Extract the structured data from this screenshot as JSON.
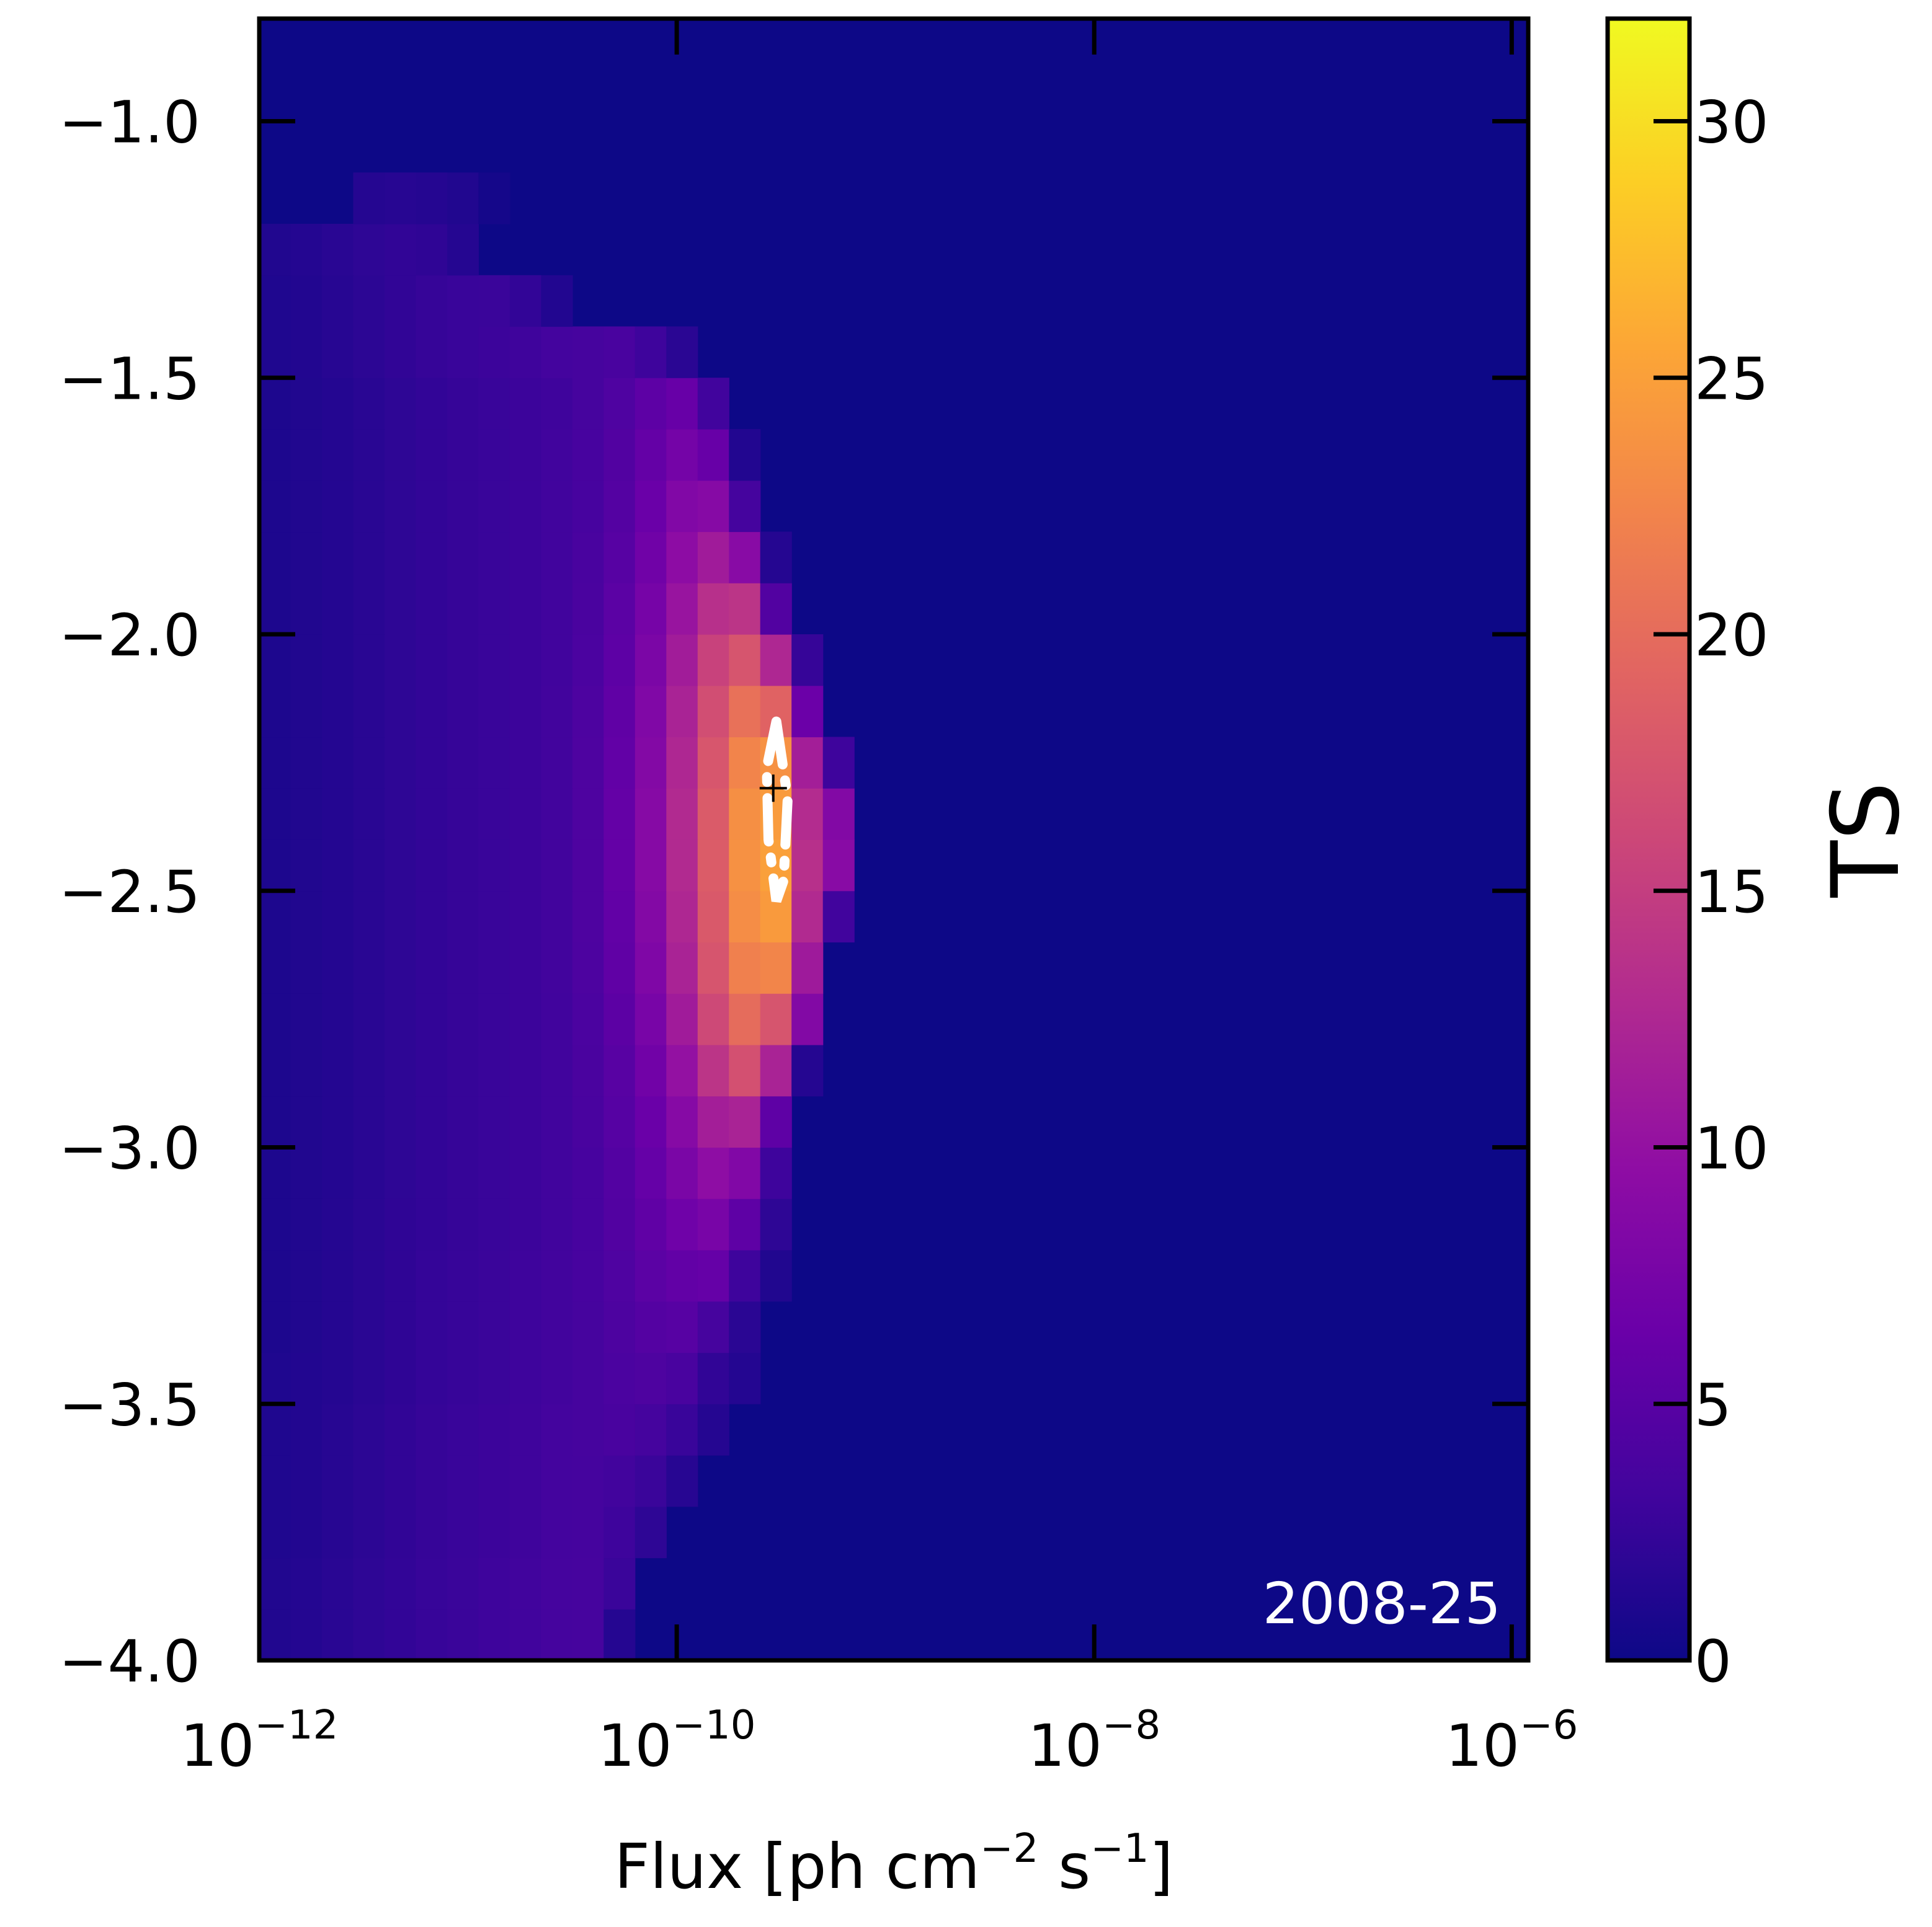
{
  "chart_data": {
    "type": "heatmap",
    "title": "",
    "xlabel": "Flux [ph cm$^{-2}$ s$^{-1}$]",
    "xlabel_parts": {
      "main": "Flux [ph cm",
      "exp1": "−2",
      "mid": " s",
      "exp2": "−1",
      "end": "]"
    },
    "ylabel": "",
    "x_scale": "log",
    "x_range": [
      1e-12,
      1.2e-06
    ],
    "y_range": [
      -4.0,
      -0.8
    ],
    "x_ticks": [
      {
        "value": 1e-12,
        "base": "10",
        "exp": "−12"
      },
      {
        "value": 1e-10,
        "base": "10",
        "exp": "−10"
      },
      {
        "value": 1e-08,
        "base": "10",
        "exp": "−8"
      },
      {
        "value": 1e-06,
        "base": "10",
        "exp": "−6"
      }
    ],
    "y_ticks": [
      {
        "value": -1.0,
        "label": "−1.0"
      },
      {
        "value": -1.5,
        "label": "−1.5"
      },
      {
        "value": -2.0,
        "label": "−2.0"
      },
      {
        "value": -2.5,
        "label": "−2.5"
      },
      {
        "value": -3.0,
        "label": "−3.0"
      },
      {
        "value": -3.5,
        "label": "−3.5"
      },
      {
        "value": -4.0,
        "label": "−4.0"
      }
    ],
    "grid": false,
    "colormap": "plasma",
    "colorbar": {
      "label": "TS",
      "range": [
        0,
        32
      ],
      "ticks": [
        {
          "value": 0,
          "label": "0"
        },
        {
          "value": 5,
          "label": "5"
        },
        {
          "value": 10,
          "label": "10"
        },
        {
          "value": 15,
          "label": "15"
        },
        {
          "value": 20,
          "label": "20"
        },
        {
          "value": 25,
          "label": "25"
        },
        {
          "value": 30,
          "label": "30"
        }
      ]
    },
    "grid_cells": {
      "log10_x_start": -12.0,
      "log10_x_step": 0.15,
      "y_start": -4.0,
      "y_step": 0.1,
      "rows": [
        [
          1.2,
          1.4,
          1.7,
          2.0,
          2.3,
          2.6,
          2.8,
          3.0,
          3.2,
          3.5,
          3.6,
          1.5
        ],
        [
          1.2,
          1.4,
          1.7,
          2.0,
          2.3,
          2.6,
          2.8,
          3.0,
          3.2,
          3.5,
          3.6,
          2.8
        ],
        [
          1.1,
          1.3,
          1.6,
          1.9,
          2.2,
          2.5,
          2.7,
          2.9,
          3.1,
          3.4,
          3.5,
          3.0,
          2.0
        ],
        [
          1.1,
          1.3,
          1.6,
          1.9,
          2.2,
          2.5,
          2.7,
          2.9,
          3.1,
          3.4,
          3.5,
          3.3,
          2.8,
          1.6
        ],
        [
          1.1,
          1.3,
          1.6,
          1.9,
          2.2,
          2.5,
          2.7,
          2.9,
          3.1,
          3.4,
          3.6,
          3.8,
          3.5,
          2.7,
          1.5
        ],
        [
          1.1,
          1.3,
          1.5,
          1.8,
          2.1,
          2.4,
          2.6,
          2.8,
          3.0,
          3.3,
          3.6,
          4.0,
          4.2,
          3.8,
          2.2,
          1.4
        ],
        [
          1.0,
          1.2,
          1.5,
          1.8,
          2.1,
          2.4,
          2.6,
          2.8,
          3.0,
          3.3,
          3.6,
          4.1,
          4.7,
          4.9,
          3.6,
          1.8
        ],
        [
          1.0,
          1.2,
          1.5,
          1.8,
          2.1,
          2.4,
          2.6,
          2.8,
          3.0,
          3.3,
          3.7,
          4.3,
          5.2,
          5.8,
          6.0,
          3.0,
          1.2
        ],
        [
          1.0,
          1.2,
          1.5,
          1.8,
          2.1,
          2.3,
          2.5,
          2.7,
          2.9,
          3.2,
          3.7,
          4.5,
          5.6,
          6.8,
          7.6,
          5.5,
          2.0
        ],
        [
          1.0,
          1.2,
          1.4,
          1.7,
          2.0,
          2.3,
          2.5,
          2.7,
          2.9,
          3.2,
          3.7,
          4.6,
          6.0,
          7.8,
          9.5,
          8.4,
          3.0
        ],
        [
          1.0,
          1.2,
          1.4,
          1.7,
          2.0,
          2.3,
          2.5,
          2.7,
          2.9,
          3.2,
          3.8,
          4.8,
          6.4,
          8.8,
          11.5,
          12.0,
          5.5
        ],
        [
          1.0,
          1.2,
          1.4,
          1.7,
          2.0,
          2.3,
          2.5,
          2.7,
          2.9,
          3.2,
          3.9,
          5.0,
          7.0,
          10.0,
          14.0,
          17.0,
          12.0,
          1.5
        ],
        [
          1.0,
          1.2,
          1.4,
          1.7,
          2.0,
          2.3,
          2.5,
          2.7,
          2.9,
          3.2,
          4.0,
          5.3,
          7.6,
          11.2,
          16.2,
          20.0,
          17.5,
          8.5
        ],
        [
          1.0,
          1.2,
          1.4,
          1.7,
          2.0,
          2.3,
          2.5,
          2.7,
          2.9,
          3.3,
          4.1,
          5.6,
          8.2,
          12.0,
          17.5,
          22.0,
          22.5,
          11.0
        ],
        [
          1.0,
          1.2,
          1.4,
          1.7,
          2.0,
          2.3,
          2.5,
          2.7,
          2.9,
          3.3,
          4.2,
          5.8,
          8.6,
          12.5,
          18.0,
          23.2,
          24.5,
          12.8,
          3.2
        ],
        [
          1.0,
          1.2,
          1.4,
          1.7,
          2.0,
          2.3,
          2.5,
          2.7,
          2.9,
          3.3,
          4.2,
          5.9,
          8.8,
          12.8,
          18.3,
          23.6,
          25.0,
          13.5,
          9.0
        ],
        [
          1.0,
          1.2,
          1.4,
          1.7,
          2.0,
          2.3,
          2.5,
          2.7,
          2.9,
          3.3,
          4.2,
          5.9,
          8.8,
          12.8,
          18.2,
          23.4,
          24.6,
          13.0,
          8.5
        ],
        [
          1.0,
          1.2,
          1.4,
          1.7,
          2.0,
          2.3,
          2.5,
          2.7,
          2.9,
          3.3,
          4.2,
          5.8,
          8.6,
          12.5,
          17.6,
          22.4,
          23.6,
          11.5,
          3.0
        ],
        [
          1.0,
          1.2,
          1.4,
          1.7,
          2.0,
          2.3,
          2.5,
          2.7,
          2.9,
          3.3,
          4.1,
          5.6,
          8.3,
          12.0,
          16.8,
          20.5,
          19.0,
          6.5
        ],
        [
          1.0,
          1.2,
          1.4,
          1.7,
          2.0,
          2.3,
          2.5,
          2.7,
          2.9,
          3.2,
          4.0,
          5.4,
          7.9,
          11.3,
          15.5,
          17.5,
          12.5,
          2.5
        ],
        [
          1.0,
          1.2,
          1.4,
          1.7,
          2.0,
          2.3,
          2.5,
          2.7,
          2.9,
          3.2,
          3.9,
          5.2,
          7.4,
          10.4,
          13.5,
          14.0,
          4.5
        ],
        [
          1.0,
          1.2,
          1.4,
          1.7,
          2.0,
          2.3,
          2.5,
          2.7,
          2.9,
          3.2,
          3.8,
          4.9,
          6.9,
          9.4,
          11.2,
          9.0,
          1.5
        ],
        [
          1.0,
          1.2,
          1.4,
          1.7,
          2.0,
          2.3,
          2.5,
          2.7,
          2.9,
          3.2,
          3.7,
          4.7,
          6.4,
          8.4,
          8.8,
          3.5
        ],
        [
          1.0,
          1.2,
          1.4,
          1.7,
          2.0,
          2.3,
          2.5,
          2.7,
          2.9,
          3.2,
          3.7,
          4.5,
          5.9,
          7.3,
          6.2,
          1.3
        ],
        [
          1.0,
          1.2,
          1.4,
          1.7,
          2.0,
          2.3,
          2.5,
          2.7,
          2.9,
          3.1,
          3.6,
          4.3,
          5.4,
          6.2,
          3.2
        ],
        [
          1.1,
          1.3,
          1.6,
          1.9,
          2.2,
          2.5,
          2.7,
          2.9,
          3.1,
          3.4,
          3.6,
          3.8,
          3.0,
          1.8
        ],
        [
          1.1,
          1.3,
          1.6,
          1.9,
          2.2,
          2.5,
          2.7,
          2.8,
          2.3,
          1.3
        ],
        [
          1.2,
          1.4,
          1.7,
          2.0,
          2.2,
          2.1,
          1.5
        ],
        [
          0,
          0,
          0,
          1.5,
          1.6,
          1.5,
          1.2,
          0.5
        ]
      ]
    },
    "contour": {
      "style": "dash-dot",
      "color": "#ffffff",
      "points": [
        [
          3e-10,
          -2.17
        ],
        [
          3.4e-10,
          -2.32
        ],
        [
          3.25e-10,
          -2.48
        ],
        [
          3e-10,
          -2.52
        ],
        [
          2.75e-10,
          -2.4
        ],
        [
          2.7e-10,
          -2.26
        ],
        [
          3e-10,
          -2.17
        ]
      ]
    },
    "best_fit": {
      "x": 2.9e-10,
      "y": -2.3,
      "marker": "+"
    },
    "annotation": "2008-25"
  }
}
